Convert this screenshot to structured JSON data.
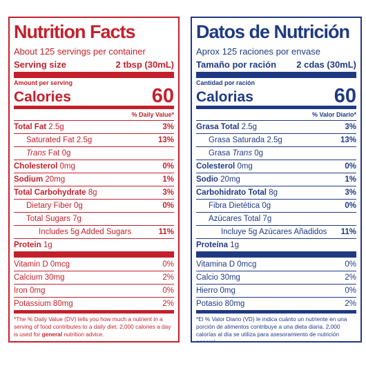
{
  "panels": [
    {
      "title": "Nutrition Facts",
      "servings": "About 125 servings per container",
      "serving_size_label": "Serving size",
      "serving_size": "2 tbsp (30mL)",
      "amount_per_serving": "Amount per serving",
      "calories_label": "Calories",
      "calories": "60",
      "dv_header": "% Daily Value*",
      "color": "#c4202b",
      "rows": [
        {
          "name": [
            "Total Fat"
          ],
          "amount": "2.5g",
          "dv": "3%"
        },
        {
          "name": [
            "Saturated Fat"
          ],
          "amount": "2.5g",
          "dv": "13%"
        },
        {
          "name": [
            "Trans",
            "Fat"
          ],
          "italic_word": 0,
          "amount": "0g"
        },
        {
          "name": [
            "Cholesterol"
          ],
          "amount": "0mg",
          "dv": "0%"
        },
        {
          "name": [
            "Sodium"
          ],
          "amount": "20mg",
          "dv": "1%"
        },
        {
          "name": [
            "Total Carbohydrate"
          ],
          "amount": "8g",
          "dv": "3%"
        },
        {
          "name": [
            "Dietary Fiber"
          ],
          "amount": "0g",
          "dv": "0%"
        },
        {
          "name": [
            "Total Sugars"
          ],
          "amount": "7g"
        },
        {
          "name": [
            "Includes 5g Added Sugars"
          ],
          "dv": "11%"
        },
        {
          "name": [
            "Protein"
          ],
          "amount": "1g"
        }
      ],
      "vitamins": [
        {
          "name": "Vitamin D",
          "amount": "0mcg",
          "dv": "0%"
        },
        {
          "name": "Calcium",
          "amount": "30mg",
          "dv": "2%"
        },
        {
          "name": "Iron",
          "amount": "0mg",
          "dv": "0%"
        },
        {
          "name": "Potassium",
          "amount": "80mg",
          "dv": "2%"
        }
      ],
      "footnote": [
        "*The % Daily Value (DV) tells you how much a nutrient in a serving of food contributes to a daily diet. 2,000 calories a day is used for ",
        "general",
        " nutrition advice."
      ]
    },
    {
      "title": "Datos de Nutrición",
      "servings": "Aprox 125 raciones por envase",
      "serving_size_label": "Tamaño por ración",
      "serving_size": "2 cdas (30mL)",
      "amount_per_serving": "Cantidad por ración",
      "calories_label": "Calorias",
      "calories": "60",
      "dv_header": "% Valor Diario*",
      "color": "#1f3a82",
      "rows": [
        {
          "name": [
            "Grasa Total"
          ],
          "amount": "2.5g",
          "dv": "3%"
        },
        {
          "name": [
            "Grasa Saturada"
          ],
          "amount": "2.5g",
          "dv": "13%"
        },
        {
          "name": [
            "Grasa",
            "Trans"
          ],
          "italic_word": 1,
          "amount": "0g"
        },
        {
          "name": [
            "Colesterol"
          ],
          "amount": "0mg",
          "dv": "0%"
        },
        {
          "name": [
            "Sodio"
          ],
          "amount": "20mg",
          "dv": "1%"
        },
        {
          "name": [
            "Carbohidrato Total"
          ],
          "amount": "8g",
          "dv": "3%"
        },
        {
          "name": [
            "Fibra Dietética"
          ],
          "amount": "0g",
          "dv": "0%"
        },
        {
          "name": [
            "Azúcares Total"
          ],
          "amount": "7g"
        },
        {
          "name": [
            "Incluye 5g Azúcares Añadidos"
          ],
          "dv": "11%"
        },
        {
          "name": [
            "Proteína"
          ],
          "amount": "1g"
        }
      ],
      "vitamins": [
        {
          "name": "Vitamina D",
          "amount": "0mcg",
          "dv": "0%"
        },
        {
          "name": "Calcio",
          "amount": "30mg",
          "dv": "2%"
        },
        {
          "name": "Hierro",
          "amount": "0mg",
          "dv": "0%"
        },
        {
          "name": "Potasio",
          "amount": "80mg",
          "dv": "2%"
        }
      ],
      "footnote": [
        "*El % Valor Diario (VD) le indica cuánto un nutriente en una porción de alimentos contribuye a una dieta diaria. 2,000 calorías al día se utiliza para asesoramiento de nutrición general."
      ]
    }
  ]
}
